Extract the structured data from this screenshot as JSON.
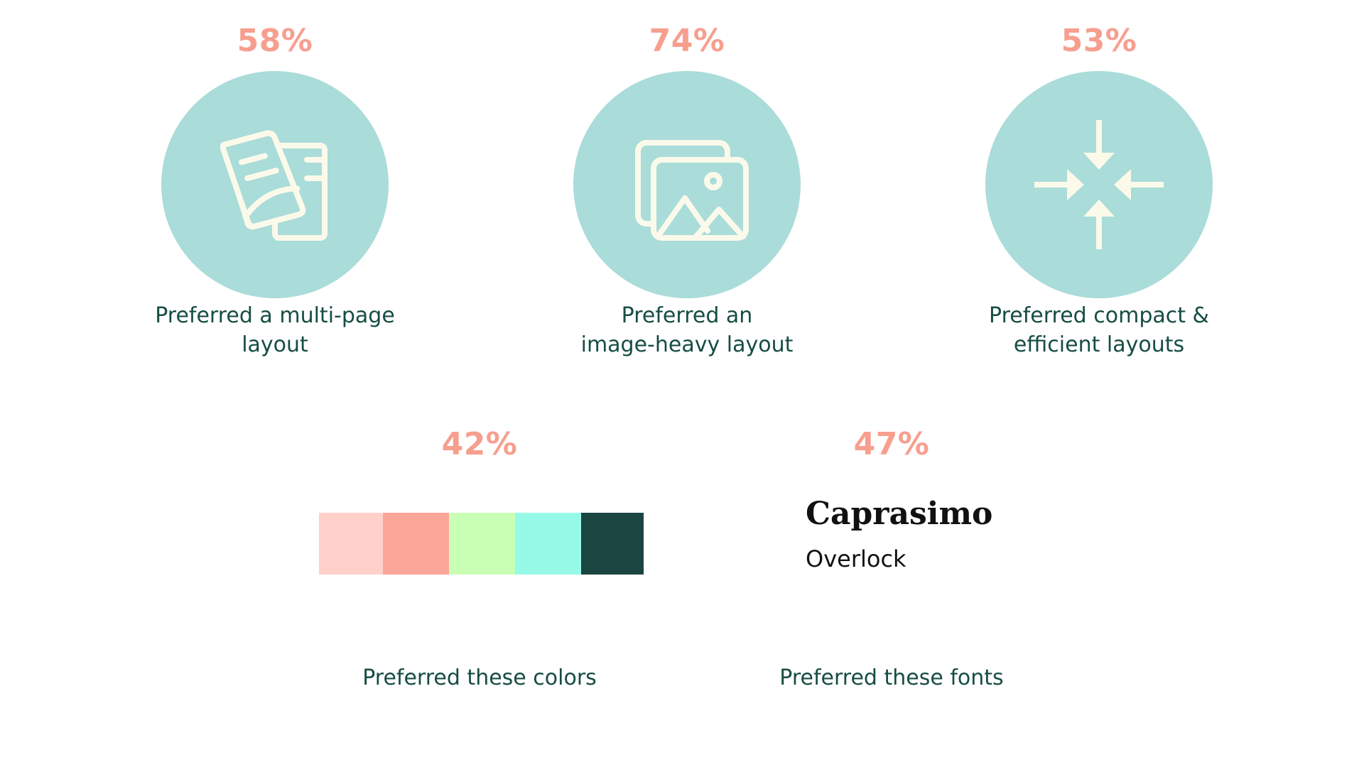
{
  "colors": {
    "accent": "#f79f8f",
    "text": "#164d43",
    "circle": "#aadcd9",
    "icon": "#fbfaea",
    "font_sample": "#111111"
  },
  "stats": [
    {
      "percent": "58%",
      "caption_line1": "Preferred a multi-page",
      "caption_line2": "layout",
      "icon": "multi-page-documents-icon"
    },
    {
      "percent": "74%",
      "caption_line1": "Preferred an",
      "caption_line2": "image-heavy layout",
      "icon": "stacked-images-icon"
    },
    {
      "percent": "53%",
      "caption_line1": "Preferred compact &",
      "caption_line2": "efficient layouts",
      "icon": "compress-arrows-icon"
    },
    {
      "percent": "42%",
      "caption_line1": "Preferred these colors",
      "swatches": [
        "#ffd1ca",
        "#fca599",
        "#c9ffb5",
        "#97fae8",
        "#1a4541"
      ]
    },
    {
      "percent": "47%",
      "caption_line1": "Preferred these fonts",
      "fonts": [
        "Caprasimo",
        "Overlock"
      ]
    }
  ]
}
